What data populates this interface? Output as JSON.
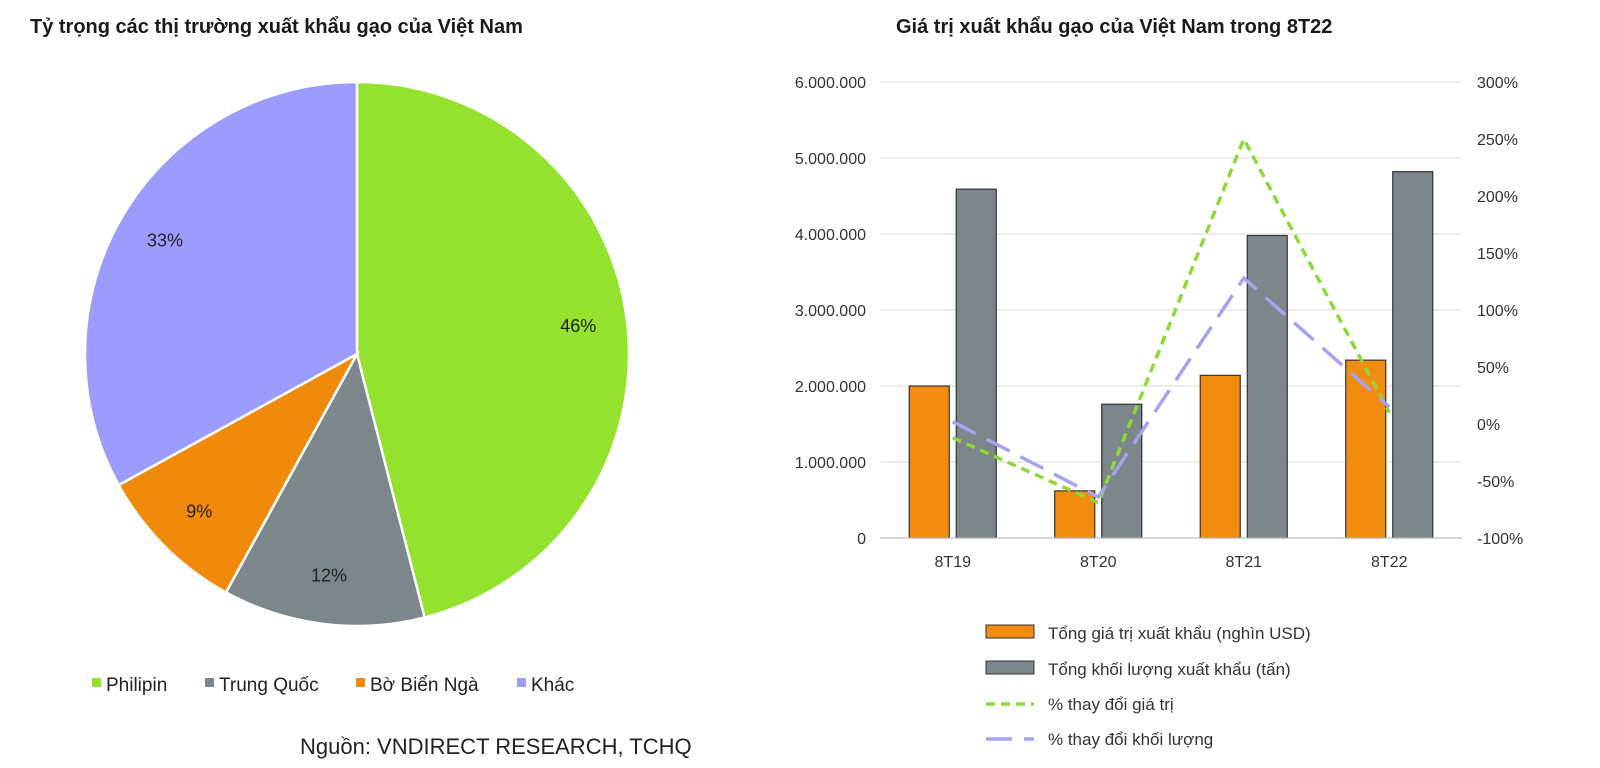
{
  "source": "Nguồn: VNDIRECT RESEARCH, TCHQ",
  "chart_data": [
    {
      "type": "pie",
      "title": "Tỷ trọng các thị trường xuất khẩu gạo của Việt Nam",
      "labels": [
        "Philipin",
        "Trung Quốc",
        "Bờ Biển Ngà",
        "Khác"
      ],
      "values": [
        46,
        12,
        9,
        33
      ],
      "value_labels": [
        "46%",
        "12%",
        "9%",
        "33%"
      ],
      "colors": [
        "#92e22e",
        "#7b878b",
        "#f08a0b",
        "#9c9cff"
      ],
      "legend": "bottom"
    },
    {
      "type": "bar",
      "title": "Giá trị xuất khẩu gạo của Việt Nam trong 8T22",
      "categories": [
        "8T19",
        "8T20",
        "8T21",
        "8T22"
      ],
      "y_left": {
        "range": [
          0,
          6000000
        ],
        "ticks": [
          0,
          1000000,
          2000000,
          3000000,
          4000000,
          5000000,
          6000000
        ],
        "tick_labels": [
          "0",
          "1.000.000",
          "2.000.000",
          "3.000.000",
          "4.000.000",
          "5.000.000",
          "6.000.000"
        ]
      },
      "y_right": {
        "range": [
          -100,
          300
        ],
        "ticks": [
          -100,
          -50,
          0,
          50,
          100,
          150,
          200,
          250,
          300
        ],
        "tick_labels": [
          "-100%",
          "-50%",
          "0%",
          "50%",
          "100%",
          "150%",
          "200%",
          "250%",
          "300%"
        ]
      },
      "series": [
        {
          "name": "Tổng giá trị xuất khẩu (nghìn USD)",
          "kind": "bar",
          "axis": "left",
          "color": "#f28c0f",
          "values": [
            2000000,
            620000,
            2140000,
            2340000
          ]
        },
        {
          "name": "Tổng khối lượng xuất khẩu (tấn)",
          "kind": "bar",
          "axis": "left",
          "color": "#7b878b",
          "values": [
            4590000,
            1760000,
            3980000,
            4820000
          ]
        },
        {
          "name": "% thay đổi giá trị",
          "kind": "line",
          "dash": "short",
          "axis": "right",
          "color": "#8ed838",
          "values": [
            -12,
            -69,
            250,
            10
          ]
        },
        {
          "name": "% thay đổi khối lượng",
          "kind": "line",
          "dash": "long",
          "axis": "right",
          "color": "#a6a2f0",
          "values": [
            2,
            -64,
            128,
            15
          ]
        }
      ],
      "legend": "bottom"
    }
  ]
}
